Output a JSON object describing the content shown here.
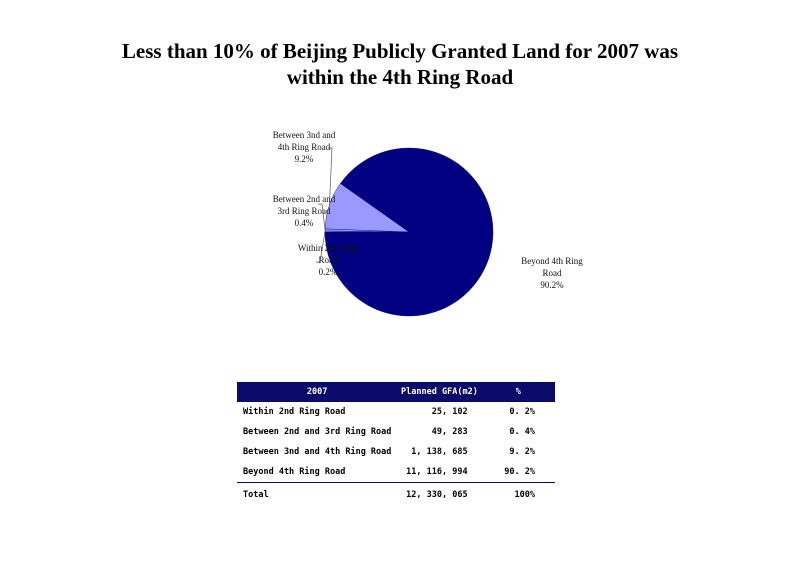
{
  "chart_data": [
    {
      "type": "pie",
      "title": "Less than 10% of Beijing Publicly Granted Land for 2007 was within the 4th Ring Road",
      "title_lines": [
        "Less than 10% of Beijing Publicly Granted Land for 2007 was",
        "within the 4th Ring Road"
      ],
      "slices": [
        {
          "label": "Within 2nd Ring Road",
          "label_lines": [
            "Within 2nd Ring",
            "Road"
          ],
          "value": 0.2,
          "value_label": "0.2%",
          "color": "#ffffcc"
        },
        {
          "label": "Between 2nd and 3rd Ring Road",
          "label_lines": [
            "Between 2nd and",
            "3rd Ring Road"
          ],
          "value": 0.4,
          "value_label": "0.4%",
          "color": "#9999ff"
        },
        {
          "label": "Between 3nd and 4th Ring Road",
          "label_lines": [
            "Between 3nd and",
            "4th Ring Road"
          ],
          "value": 9.2,
          "value_label": "9.2%",
          "color": "#9999ff"
        },
        {
          "label": "Beyond 4th Ring Road",
          "label_lines": [
            "Beyond 4th Ring",
            "Road"
          ],
          "value": 90.2,
          "value_label": "90.2%",
          "color": "#000080"
        }
      ]
    },
    {
      "type": "table",
      "header_color": "#0b0b6b",
      "columns": [
        "2007",
        "Planned GFA(m2)",
        "%"
      ],
      "rows": [
        [
          "Within 2nd Ring Road",
          "25, 102",
          "0. 2%"
        ],
        [
          "Between 2nd and 3rd Ring Road",
          "49, 283",
          "0. 4%"
        ],
        [
          "Between 3nd and 4th Ring Road",
          "1, 138, 685",
          "9. 2%"
        ],
        [
          "Beyond 4th Ring Road",
          "11, 116, 994",
          "90. 2%"
        ],
        [
          "Total",
          "12, 330, 065",
          "100%"
        ]
      ]
    }
  ]
}
